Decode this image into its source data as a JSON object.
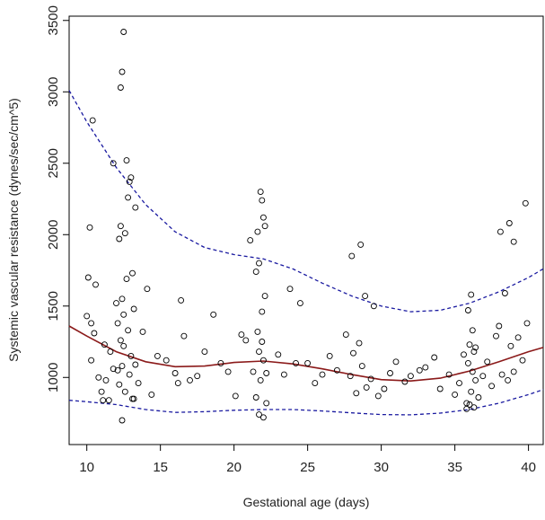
{
  "chart_data": {
    "type": "scatter",
    "title": "",
    "xlabel": "Gestational age (days)",
    "ylabel": "Systemic vascular resistance (dynes/sec/cm^5)",
    "xlim": [
      8.8,
      41
    ],
    "ylim": [
      530,
      3530
    ],
    "xticks": [
      10,
      15,
      20,
      25,
      30,
      35,
      40
    ],
    "yticks": [
      1000,
      1500,
      2000,
      2500,
      3000,
      3500
    ],
    "xtick_labels": [
      "10",
      "15",
      "20",
      "25",
      "30",
      "35",
      "40"
    ],
    "ytick_labels": [
      "1000",
      "1500",
      "2000",
      "2500",
      "3000",
      "3500"
    ],
    "grid": false,
    "legend": "none",
    "colors": {
      "points": "#000000",
      "fit": "#8b1a1a",
      "band": "#1a1aa0"
    },
    "series": [
      {
        "kind": "points",
        "x": [
          10.0,
          10.1,
          10.2,
          10.3,
          10.3,
          10.5,
          10.6,
          10.8,
          11.0,
          11.1,
          11.2,
          11.3,
          11.6,
          11.8,
          12.0,
          12.1,
          12.2,
          12.3,
          12.3,
          12.4,
          12.4,
          12.5,
          12.5,
          12.6,
          12.7,
          12.8,
          12.9,
          13.0,
          13.1,
          13.2,
          13.3,
          13.5,
          13.8,
          14.1,
          14.4,
          14.8,
          15.4,
          16.0,
          16.2,
          16.4,
          16.6,
          17.0,
          17.5,
          18.0,
          18.6,
          19.1,
          19.6,
          20.1,
          20.5,
          20.8,
          21.1,
          21.3,
          21.5,
          21.6,
          21.7,
          21.8,
          21.9,
          22.0,
          22.1,
          22.2,
          23.0,
          23.4,
          23.8,
          24.2,
          24.5,
          25.0,
          25.5,
          26.0,
          26.5,
          27.0,
          27.6,
          27.9,
          28.1,
          28.3,
          28.5,
          28.7,
          29.0,
          29.3,
          29.8,
          30.2,
          30.6,
          31.0,
          31.6,
          32.0,
          32.6,
          33.0,
          33.6,
          34.0,
          34.6,
          35.0,
          35.3,
          35.6,
          35.8,
          35.9,
          36.0,
          36.1,
          36.2,
          36.3,
          36.4,
          36.6,
          36.9,
          37.2,
          37.5,
          37.8,
          38.0,
          38.2,
          38.4,
          38.6,
          38.8,
          39.0,
          39.3,
          39.6,
          39.9,
          12.5,
          12.4,
          12.3,
          13.0,
          12.7,
          12.9,
          10.4,
          11.8,
          12.8,
          13.3,
          12.2,
          21.9,
          21.8,
          22.0,
          21.6,
          28.6,
          28.0,
          21.7,
          22.1,
          36.1,
          36.2,
          35.9,
          36.4,
          12.6,
          13.1,
          12.1,
          11.5,
          21.5,
          21.9,
          22.2,
          36.0,
          36.3,
          35.8,
          21.7,
          22.0,
          12.4,
          13.2,
          28.9,
          29.5,
          38.1,
          38.7,
          39.0,
          39.8
        ],
        "y": [
          1430,
          1700,
          2050,
          1380,
          1120,
          1310,
          1650,
          1000,
          900,
          840,
          1230,
          980,
          1180,
          1060,
          1520,
          1380,
          950,
          1260,
          2060,
          1080,
          1550,
          1220,
          1440,
          900,
          1690,
          1330,
          1020,
          1150,
          850,
          1480,
          1090,
          960,
          1320,
          1620,
          880,
          1150,
          1120,
          1030,
          960,
          1540,
          1290,
          980,
          1010,
          1180,
          1440,
          1100,
          1040,
          870,
          1300,
          1260,
          1960,
          1040,
          860,
          1320,
          1180,
          980,
          1460,
          1120,
          1570,
          1030,
          1160,
          1020,
          1620,
          1100,
          1520,
          1100,
          960,
          1020,
          1150,
          1050,
          1300,
          1010,
          1170,
          890,
          1240,
          1080,
          930,
          990,
          870,
          920,
          1030,
          1110,
          970,
          1010,
          1050,
          1070,
          1140,
          920,
          1020,
          880,
          960,
          1160,
          820,
          1100,
          1230,
          900,
          1040,
          1180,
          980,
          860,
          1010,
          1110,
          940,
          1290,
          1360,
          1020,
          1590,
          980,
          1220,
          1040,
          1280,
          1120,
          1380,
          3420,
          3140,
          3030,
          2400,
          2520,
          2370,
          2800,
          2500,
          2260,
          2190,
          1970,
          2240,
          2300,
          2120,
          2020,
          1930,
          1850,
          1800,
          2060,
          1580,
          1330,
          1470,
          1210,
          2010,
          1730,
          1050,
          840,
          1740,
          1250,
          820,
          810,
          790,
          780,
          740,
          720,
          700,
          850,
          1570,
          1500,
          2020,
          2080,
          1950,
          2220
        ]
      },
      {
        "kind": "fit",
        "x": [
          8.8,
          10,
          12,
          14,
          16,
          18,
          20,
          22,
          24,
          26,
          28,
          30,
          32,
          34,
          36,
          38,
          40,
          41
        ],
        "y": [
          1360,
          1290,
          1180,
          1110,
          1075,
          1080,
          1105,
          1115,
          1095,
          1060,
          1020,
          985,
          975,
          995,
          1045,
          1110,
          1180,
          1210
        ]
      },
      {
        "kind": "upper-band",
        "x": [
          8.8,
          10,
          12,
          14,
          16,
          18,
          20,
          22,
          24,
          26,
          28,
          30,
          32,
          34,
          36,
          38,
          40,
          41
        ],
        "y": [
          3010,
          2790,
          2470,
          2210,
          2020,
          1910,
          1860,
          1830,
          1760,
          1660,
          1570,
          1500,
          1460,
          1470,
          1520,
          1600,
          1700,
          1760
        ]
      },
      {
        "kind": "lower-band",
        "x": [
          8.8,
          10,
          12,
          14,
          16,
          18,
          20,
          22,
          24,
          26,
          28,
          30,
          32,
          34,
          36,
          38,
          40,
          41
        ],
        "y": [
          840,
          830,
          810,
          775,
          755,
          760,
          770,
          775,
          775,
          765,
          752,
          740,
          738,
          750,
          775,
          820,
          880,
          915
        ]
      }
    ]
  }
}
